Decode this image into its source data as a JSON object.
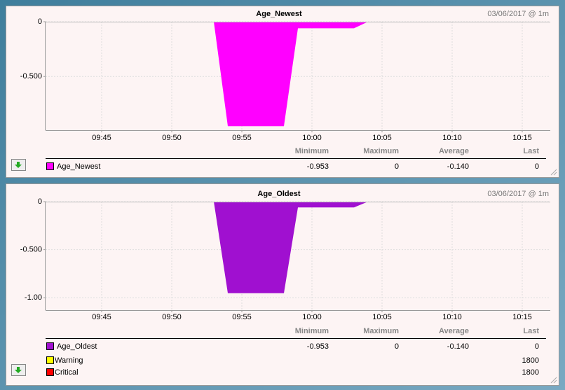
{
  "chart_data": [
    {
      "type": "area",
      "title": "Age_Newest",
      "timestamp": "03/06/2017 @ 1m",
      "x": [
        "09:53",
        "09:54",
        "09:55",
        "09:56",
        "09:57",
        "09:58",
        "09:59",
        "10:00",
        "10:01",
        "10:02",
        "10:03",
        "10:04"
      ],
      "xlim": [
        "09:41",
        "10:17"
      ],
      "xticks": [
        "09:45",
        "09:50",
        "09:55",
        "10:00",
        "10:05",
        "10:10",
        "10:15"
      ],
      "ylim": [
        -0.99,
        0
      ],
      "yticks": [
        0,
        {
          "value": -0.5,
          "label": "-0.500"
        }
      ],
      "grid": true,
      "stats_columns": [
        "Minimum",
        "Maximum",
        "Average",
        "Last"
      ],
      "series": [
        {
          "name": "Age_Newest",
          "color": "#ff00ff",
          "values": [
            0,
            -0.953,
            -0.953,
            -0.953,
            -0.953,
            -0.953,
            -0.06,
            -0.06,
            -0.06,
            -0.06,
            -0.06,
            0
          ],
          "stats": [
            "-0.953",
            "0",
            "-0.140",
            "0"
          ]
        }
      ]
    },
    {
      "type": "area",
      "title": "Age_Oldest",
      "timestamp": "03/06/2017 @ 1m",
      "x": [
        "09:53",
        "09:54",
        "09:55",
        "09:56",
        "09:57",
        "09:58",
        "09:59",
        "10:00",
        "10:01",
        "10:02",
        "10:03",
        "10:04"
      ],
      "xlim": [
        "09:41",
        "10:17"
      ],
      "xticks": [
        "09:45",
        "09:50",
        "09:55",
        "10:00",
        "10:05",
        "10:10",
        "10:15"
      ],
      "ylim": [
        -1.13,
        0
      ],
      "yticks": [
        0,
        {
          "value": -0.5,
          "label": "-0.500"
        },
        {
          "value": -1,
          "label": "-1.00"
        }
      ],
      "grid": true,
      "stats_columns": [
        "Minimum",
        "Maximum",
        "Average",
        "Last"
      ],
      "series": [
        {
          "name": "Age_Oldest",
          "color": "#a010d0",
          "values": [
            0,
            -0.953,
            -0.953,
            -0.953,
            -0.953,
            -0.953,
            -0.06,
            -0.06,
            -0.06,
            -0.06,
            -0.06,
            0
          ],
          "stats": [
            "-0.953",
            "0",
            "-0.140",
            "0"
          ]
        }
      ],
      "thresholds": [
        {
          "name": "Warning",
          "color": "#ffff00",
          "value": 1800
        },
        {
          "name": "Critical",
          "color": "#ff0000",
          "value": 1800
        }
      ]
    }
  ]
}
